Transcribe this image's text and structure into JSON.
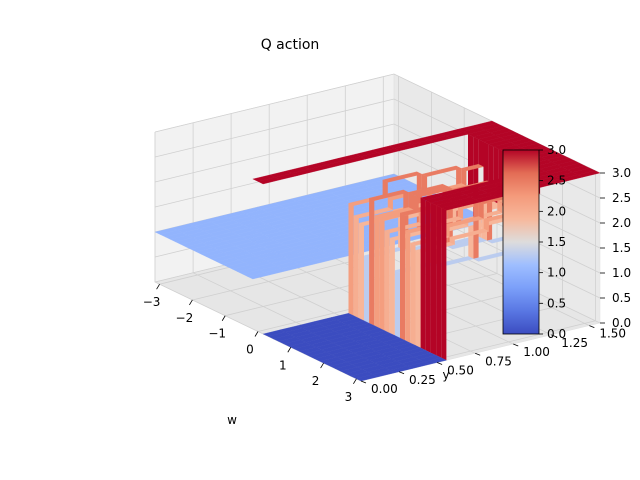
{
  "chart_data": {
    "type": "surface3d",
    "title": "Q action",
    "xlabel": "w",
    "ylabel": "y",
    "zlabel": "",
    "xlim": [
      -3.14,
      3.14
    ],
    "ylim": [
      0,
      1.57
    ],
    "zlim": [
      0,
      3
    ],
    "x_ticks": [
      "−3",
      "−2",
      "−1",
      "0",
      "1",
      "2",
      "3"
    ],
    "x_tick_values": [
      -3,
      -2,
      -1,
      0,
      1,
      2,
      3
    ],
    "y_ticks": [
      "0.00",
      "0.25",
      "0.50",
      "0.75",
      "1.00",
      "1.25",
      "1.50"
    ],
    "y_tick_values": [
      0,
      0.25,
      0.5,
      0.75,
      1.0,
      1.25,
      1.5
    ],
    "z_ticks": [
      "0.0",
      "0.5",
      "1.0",
      "1.5",
      "2.0",
      "2.5",
      "3.0"
    ],
    "z_tick_values": [
      0,
      0.5,
      1.0,
      1.5,
      2.0,
      2.5,
      3.0
    ],
    "grid": true,
    "colormap": "coolwarm",
    "colorbar": {
      "vmin": 0,
      "vmax": 3,
      "ticks": [
        "0.0",
        "0.5",
        "1.0",
        "1.5",
        "2.0",
        "2.5",
        "3.0"
      ],
      "tick_values": [
        0,
        0.5,
        1.0,
        1.5,
        2.0,
        2.5,
        3.0
      ]
    },
    "surface_regions": [
      {
        "w_range": [
          -3.14,
          -0.2
        ],
        "y_range": [
          0,
          1.57
        ],
        "action": 1
      },
      {
        "w_range": [
          0.2,
          3.14
        ],
        "y_range": [
          0,
          0.55
        ],
        "action": 0
      },
      {
        "w_range": [
          -0.2,
          0.2
        ],
        "y_range": [
          0,
          1.57
        ],
        "action": 3
      },
      {
        "w_range": [
          0.2,
          3.14
        ],
        "y_range": [
          1.3,
          1.57
        ],
        "action": 3
      },
      {
        "w_range": [
          2.4,
          3.14
        ],
        "y_range": [
          0.55,
          1.57
        ],
        "action": 3
      },
      {
        "w_range": [
          0.2,
          2.4
        ],
        "y_range": [
          0.55,
          1.3
        ],
        "action": "mixed"
      }
    ]
  }
}
